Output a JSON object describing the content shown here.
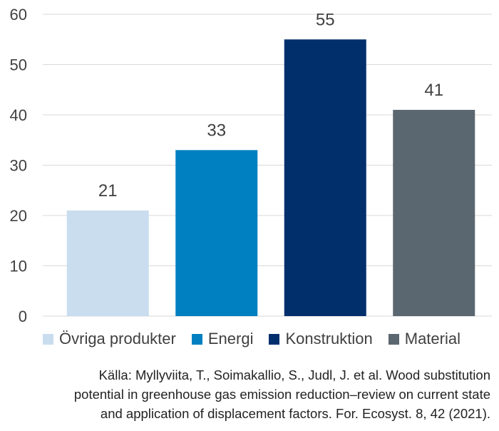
{
  "chart_data": {
    "type": "bar",
    "categories": [
      "Övriga produkter",
      "Energi",
      "Konstruktion",
      "Material"
    ],
    "values": [
      21,
      33,
      55,
      41
    ],
    "colors": [
      "#c9ddef",
      "#0080c0",
      "#002f6c",
      "#5b6770"
    ],
    "ylim": [
      0,
      60
    ],
    "yticks": [
      0,
      10,
      20,
      30,
      40,
      50,
      60
    ],
    "grid": true,
    "legend_position": "bottom",
    "title": "",
    "xlabel": "",
    "ylabel": ""
  },
  "source": {
    "lines": [
      "Källa: Myllyviita, T., Soimakallio, S., Judl, J. et al. Wood substitution",
      "potential in greenhouse gas emission reduction–review on current state",
      "and application of displacement factors. For. Ecosyst. 8, 42 (2021)."
    ]
  }
}
